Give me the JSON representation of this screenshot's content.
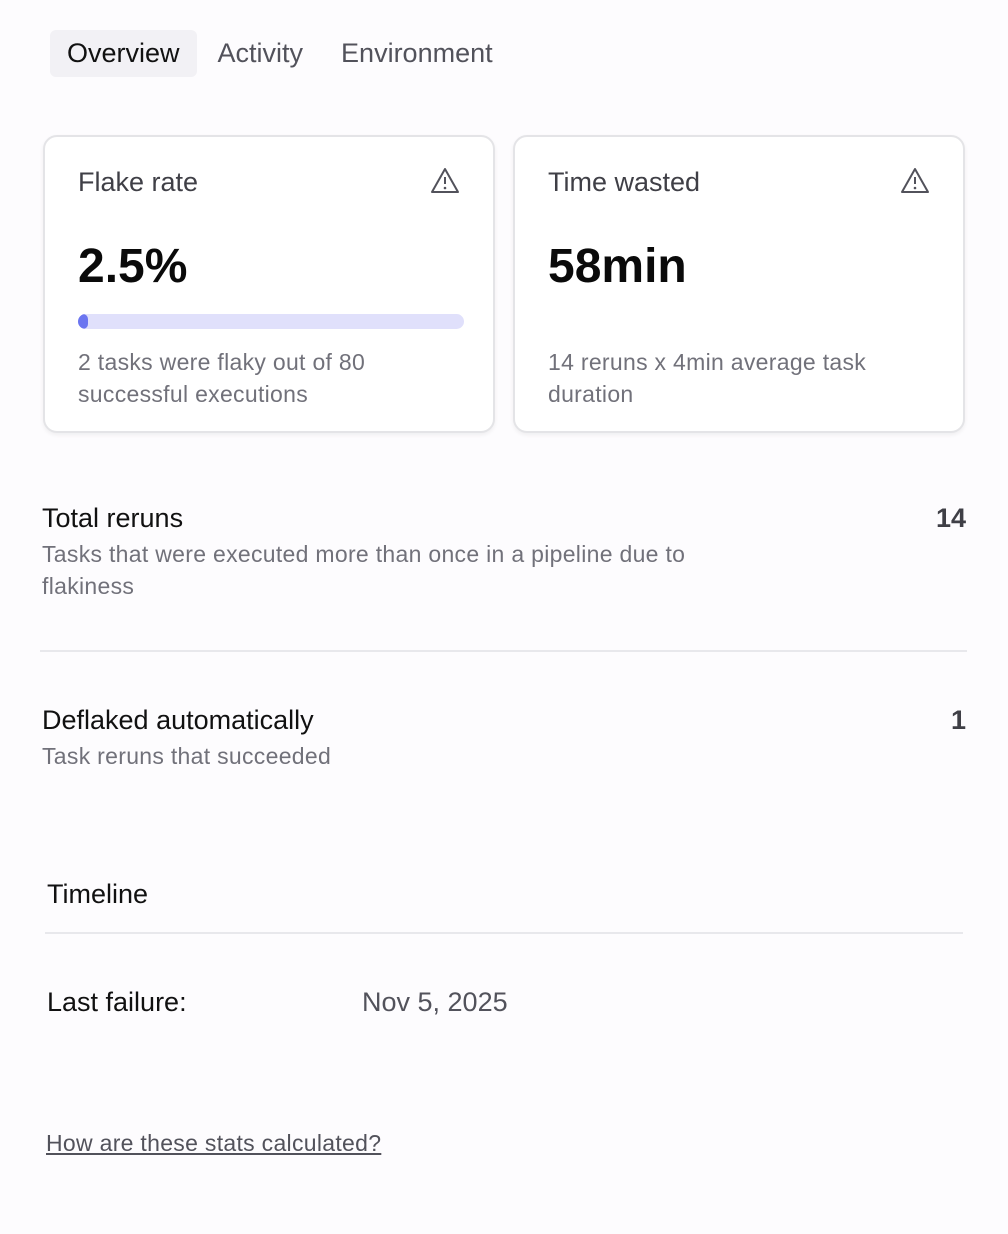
{
  "tabs": [
    {
      "label": "Overview",
      "active": true
    },
    {
      "label": "Activity"
    },
    {
      "label": "Environment"
    }
  ],
  "cards": [
    {
      "title": "Flake rate",
      "icon": "warning-triangle-icon",
      "value": "2.5%",
      "progress_percent": 2.5,
      "description": "2 tasks were flaky out of 80 successful executions"
    },
    {
      "title": "Time wasted",
      "icon": "warning-triangle-icon",
      "value": "58min",
      "description": "14 reruns x 4min average task duration"
    }
  ],
  "stats": [
    {
      "title": "Total reruns",
      "value": "14",
      "subtitle": "Tasks that were executed more than once in a pipeline due to flakiness"
    },
    {
      "title": "Deflaked automatically",
      "value": "1",
      "subtitle": "Task reruns that succeeded"
    }
  ],
  "timeline": {
    "heading": "Timeline",
    "last_failure_label": "Last failure:",
    "last_failure_value": "Nov 5, 2025"
  },
  "help_link": "How are these stats calculated?",
  "colors": {
    "progress_fill": "#6b75f0",
    "progress_track": "#e0e0fb"
  }
}
